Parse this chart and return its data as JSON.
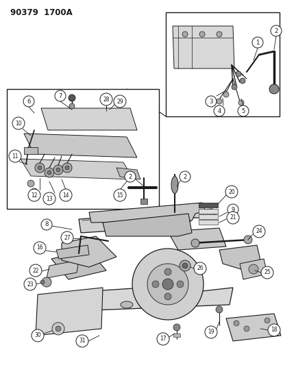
{
  "title": "90379  1700A",
  "bg_color": "#ffffff",
  "line_color": "#1a1a1a",
  "fig_width": 4.14,
  "fig_height": 5.33,
  "dpi": 100
}
